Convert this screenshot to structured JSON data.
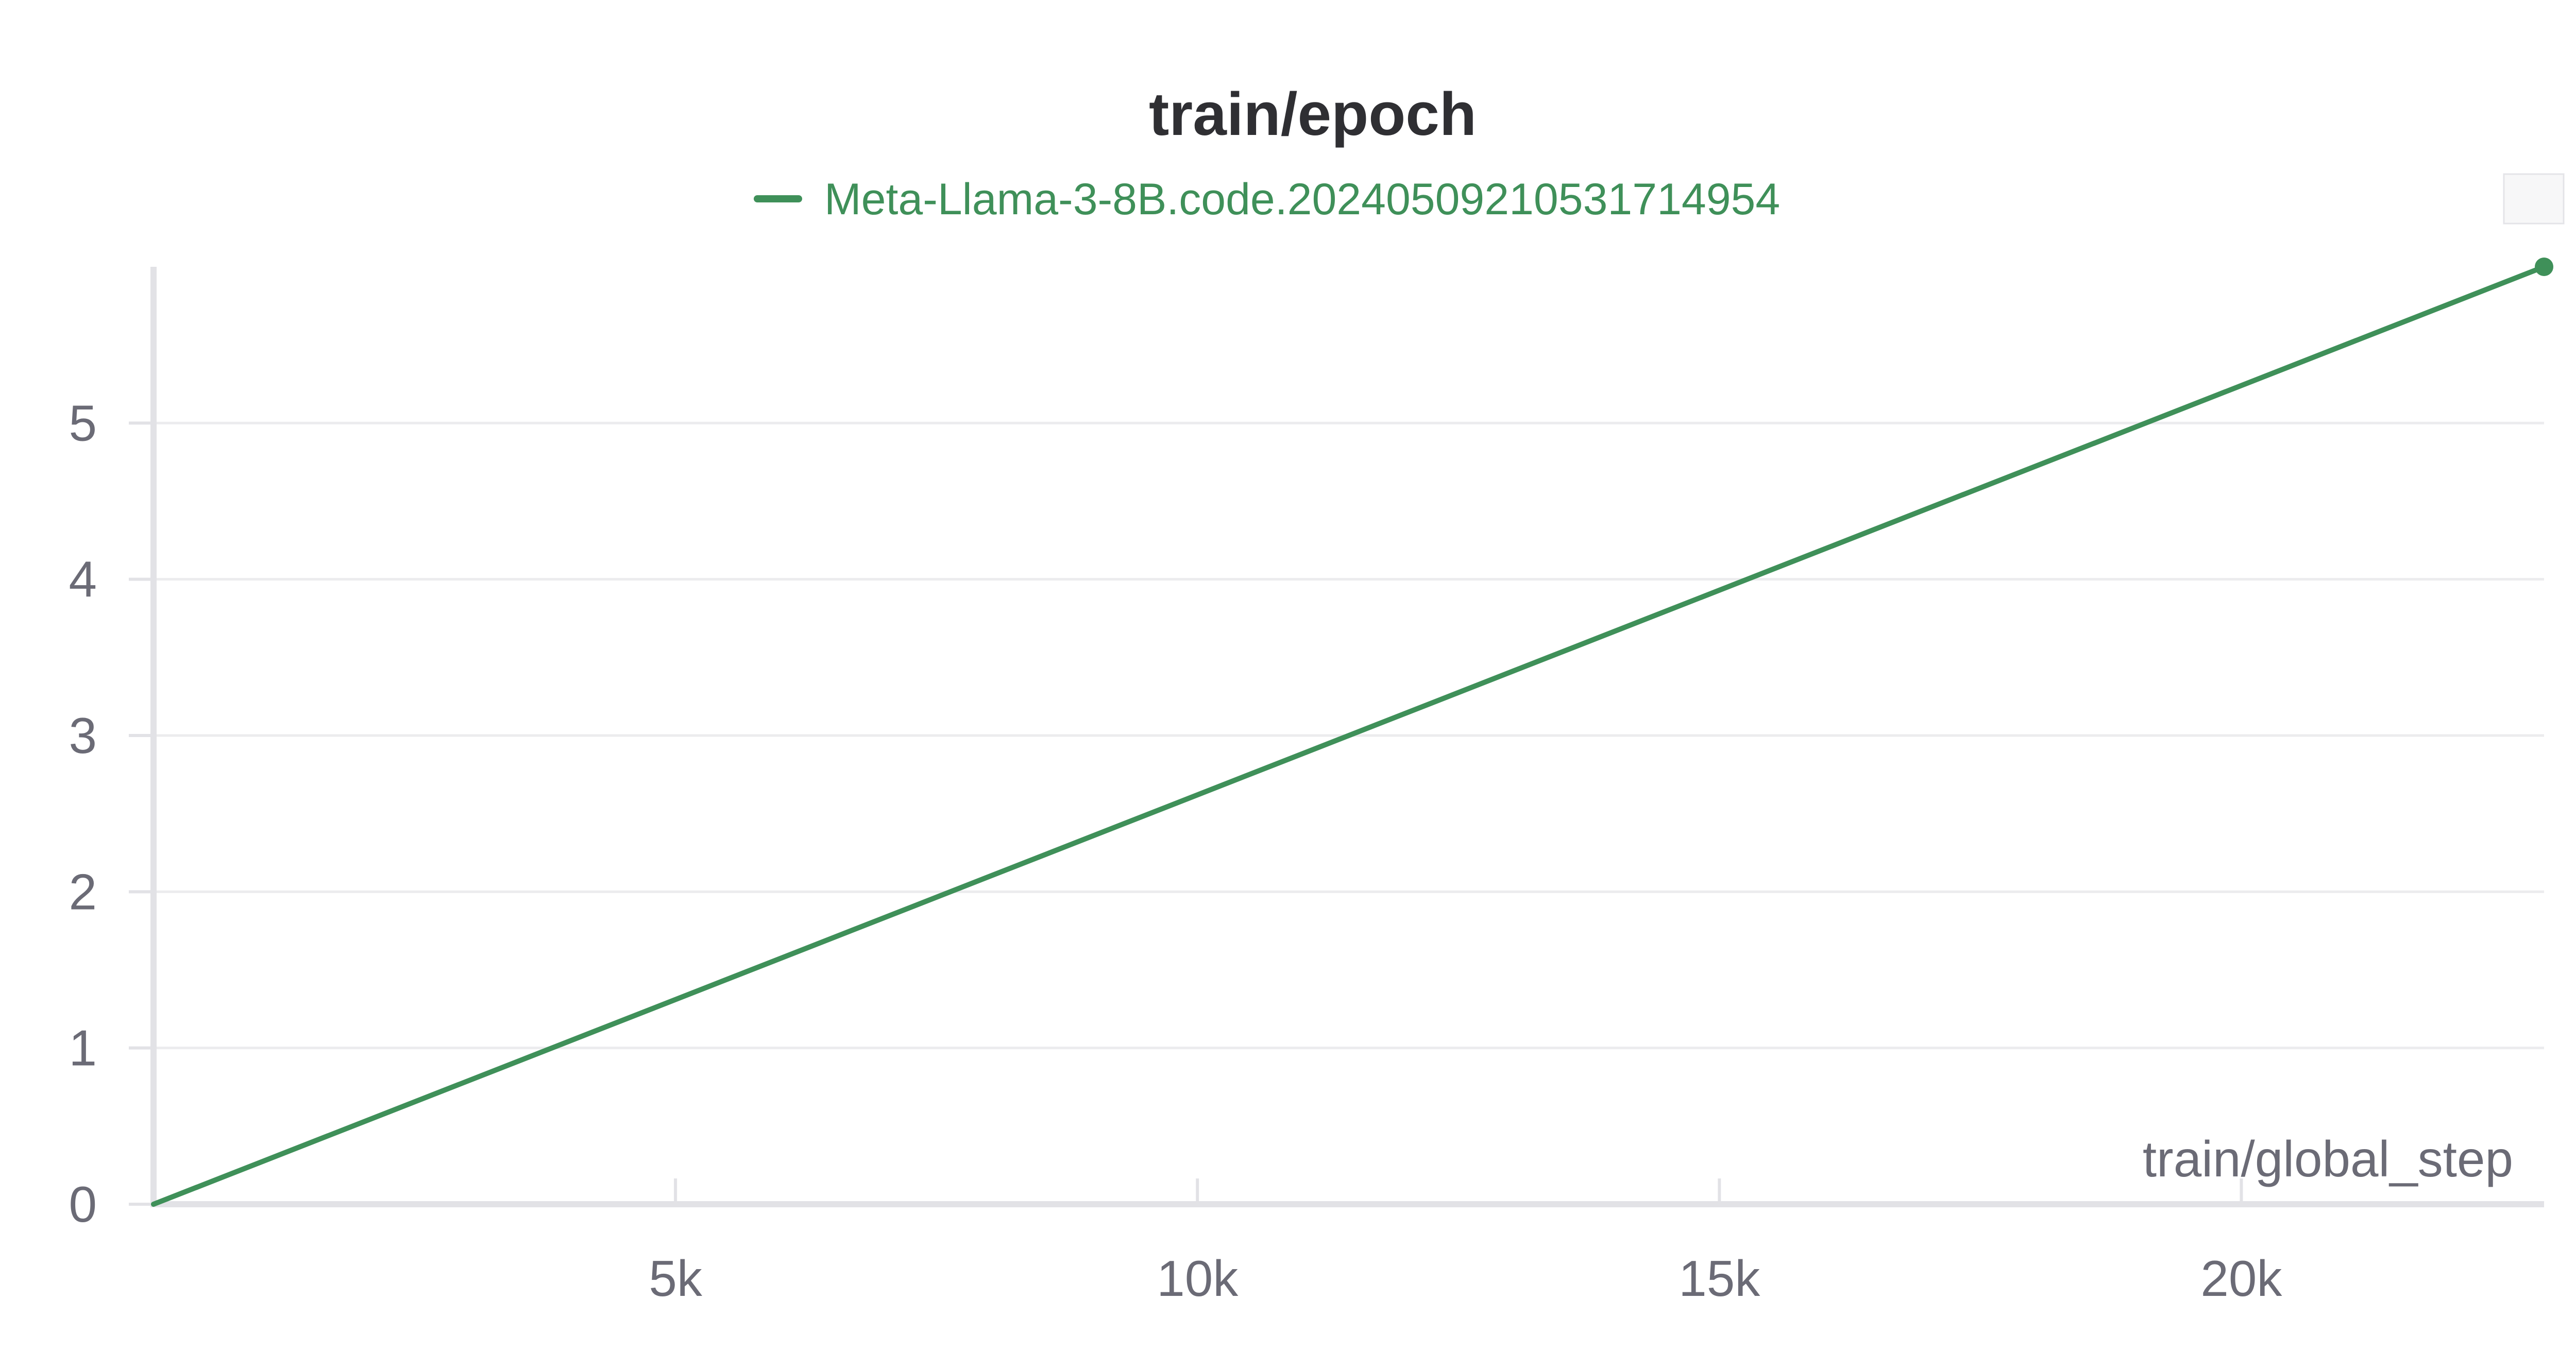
{
  "chart_data": {
    "type": "line",
    "title": "train/epoch",
    "xlabel": "train/global_step",
    "ylabel": "",
    "xlim": [
      0,
      22900
    ],
    "ylim": [
      0,
      6
    ],
    "x_ticks": [
      {
        "value": 5000,
        "label": "5k"
      },
      {
        "value": 10000,
        "label": "10k"
      },
      {
        "value": 15000,
        "label": "15k"
      },
      {
        "value": 20000,
        "label": "20k"
      }
    ],
    "y_ticks": [
      {
        "value": 0,
        "label": "0"
      },
      {
        "value": 1,
        "label": "1"
      },
      {
        "value": 2,
        "label": "2"
      },
      {
        "value": 3,
        "label": "3"
      },
      {
        "value": 4,
        "label": "4"
      },
      {
        "value": 5,
        "label": "5"
      }
    ],
    "grid": true,
    "legend_position": "top-center",
    "series": [
      {
        "name": "Meta-Llama-3-8B.code.20240509210531714954",
        "color": "#3f9059",
        "x": [
          0,
          22900
        ],
        "y": [
          0,
          6
        ]
      }
    ]
  }
}
